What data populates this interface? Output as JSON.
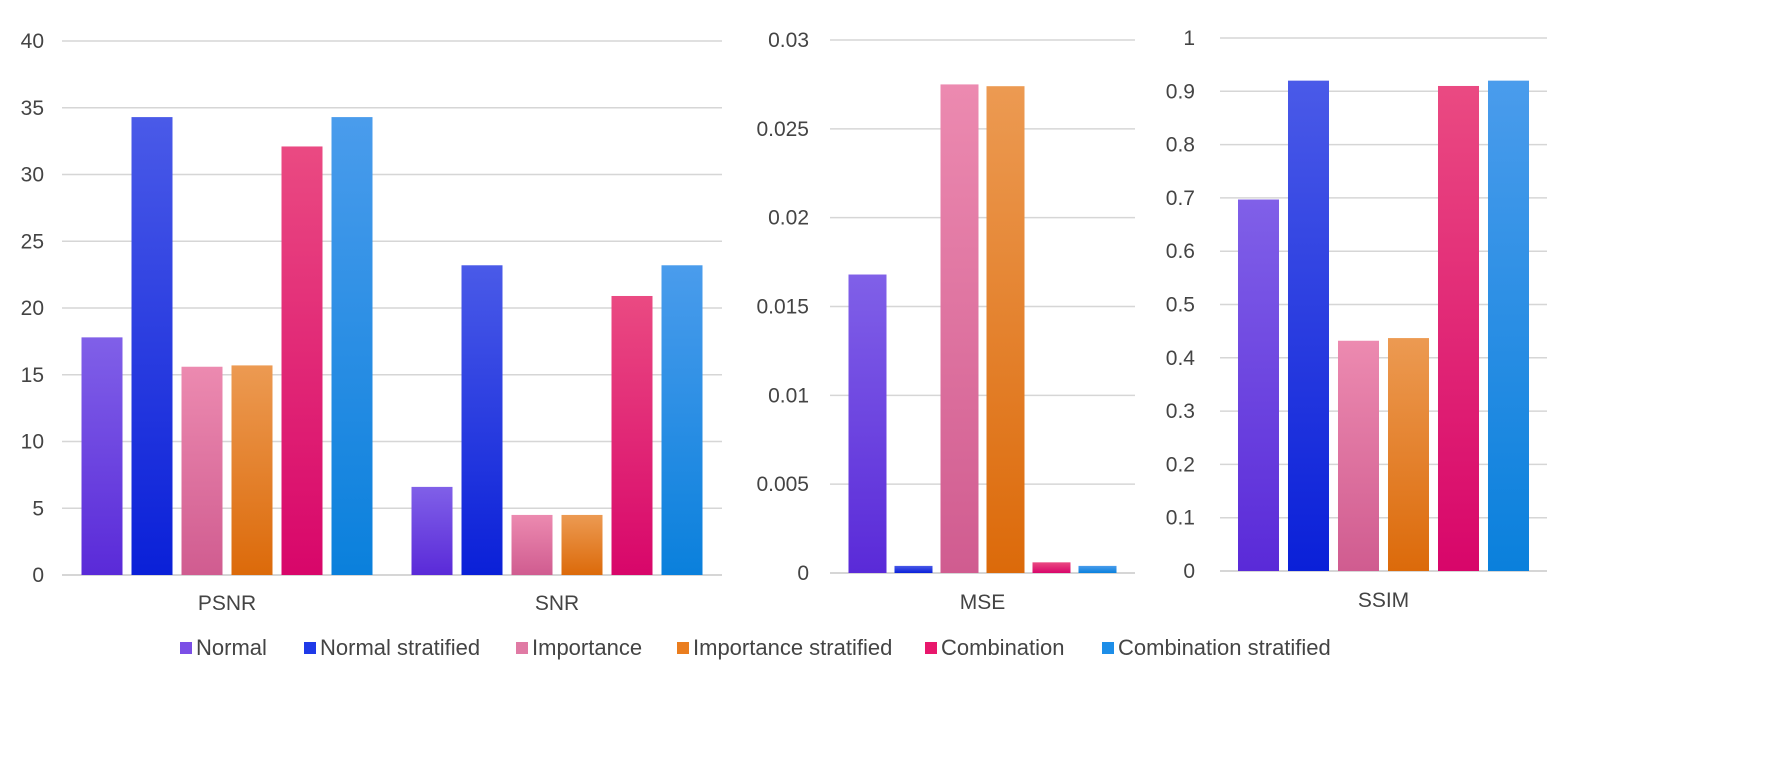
{
  "chart_data": [
    {
      "type": "bar",
      "categories": [
        "PSNR",
        "SNR"
      ],
      "series": [
        {
          "name": "Normal",
          "values": [
            17.8,
            6.6
          ]
        },
        {
          "name": "Normal stratified",
          "values": [
            34.3,
            23.2
          ]
        },
        {
          "name": "Importance",
          "values": [
            15.6,
            4.5
          ]
        },
        {
          "name": "Importance stratified",
          "values": [
            15.7,
            4.5
          ]
        },
        {
          "name": "Combination",
          "values": [
            32.1,
            20.9
          ]
        },
        {
          "name": "Combination stratified",
          "values": [
            34.3,
            23.2
          ]
        }
      ],
      "ylim": [
        0,
        40
      ],
      "yticks": [
        "0",
        "5",
        "10",
        "15",
        "20",
        "25",
        "30",
        "35",
        "40"
      ],
      "grid": true
    },
    {
      "type": "bar",
      "categories": [
        "MSE"
      ],
      "series": [
        {
          "name": "Normal",
          "values": [
            0.0168
          ]
        },
        {
          "name": "Normal stratified",
          "values": [
            0.0004
          ]
        },
        {
          "name": "Importance",
          "values": [
            0.0275
          ]
        },
        {
          "name": "Importance stratified",
          "values": [
            0.0274
          ]
        },
        {
          "name": "Combination",
          "values": [
            0.0006
          ]
        },
        {
          "name": "Combination stratified",
          "values": [
            0.0004
          ]
        }
      ],
      "ylim": [
        0,
        0.03
      ],
      "yticks": [
        "0",
        "0.005",
        "0.01",
        "0.015",
        "0.02",
        "0.025",
        "0.03"
      ],
      "grid": true
    },
    {
      "type": "bar",
      "categories": [
        "SSIM"
      ],
      "series": [
        {
          "name": "Normal",
          "values": [
            0.697
          ]
        },
        {
          "name": "Normal stratified",
          "values": [
            0.92
          ]
        },
        {
          "name": "Importance",
          "values": [
            0.432
          ]
        },
        {
          "name": "Importance stratified",
          "values": [
            0.437
          ]
        },
        {
          "name": "Combination",
          "values": [
            0.91
          ]
        },
        {
          "name": "Combination stratified",
          "values": [
            0.92
          ]
        }
      ],
      "ylim": [
        0,
        1
      ],
      "yticks": [
        "0",
        "0.1",
        "0.2",
        "0.3",
        "0.4",
        "0.5",
        "0.6",
        "0.7",
        "0.8",
        "0.9",
        "1"
      ],
      "grid": true
    }
  ],
  "legend": {
    "placement": "bottom",
    "items": [
      {
        "name": "Normal",
        "color": "#7b4fe6"
      },
      {
        "name": "Normal stratified",
        "color": "#1f3ae8"
      },
      {
        "name": "Importance",
        "color": "#e07aa4"
      },
      {
        "name": "Importance stratified",
        "color": "#ea7d1e"
      },
      {
        "name": "Combination",
        "color": "#e8176c"
      },
      {
        "name": "Combination stratified",
        "color": "#1d8ee8"
      }
    ]
  },
  "series_gradients": [
    {
      "top": "#8060e8",
      "bottom": "#5a2ad8"
    },
    {
      "top": "#4a5ae8",
      "bottom": "#0a20d8"
    },
    {
      "top": "#ec8ab0",
      "bottom": "#d05c90"
    },
    {
      "top": "#ec9a52",
      "bottom": "#dc6a0a"
    },
    {
      "top": "#ea4a82",
      "bottom": "#d8066a"
    },
    {
      "top": "#4a9cec",
      "bottom": "#0a80dc"
    }
  ]
}
